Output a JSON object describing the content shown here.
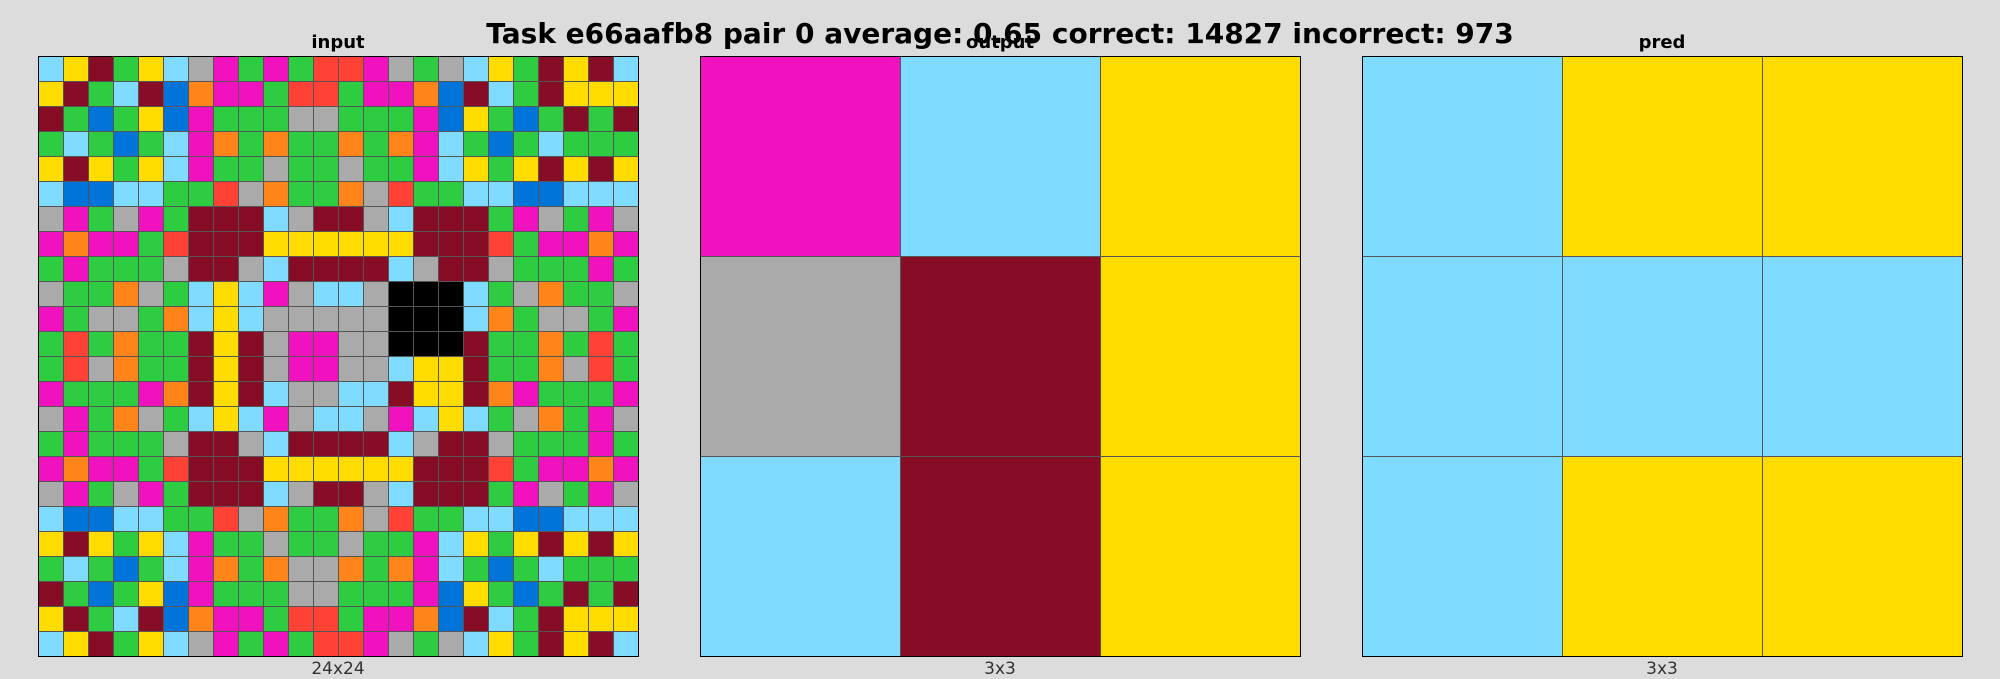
{
  "title": "Task e66aafb8 pair 0 average: 0.65 correct: 14827 incorrect: 973",
  "palette": {
    "0": "#000000",
    "1": "#0074D9",
    "2": "#FF4136",
    "3": "#2ECC40",
    "4": "#FFDC00",
    "5": "#AAAAAA",
    "6": "#F012BE",
    "7": "#FF851B",
    "8": "#7FDBFF",
    "9": "#870C25"
  },
  "panels": [
    {
      "title": "input",
      "caption": "24x24",
      "grid": [
        [
          8,
          4,
          9,
          3,
          4,
          8,
          5,
          6,
          3,
          6,
          3,
          2,
          2,
          6,
          5,
          3,
          5,
          8,
          4,
          3,
          9,
          4,
          9,
          8
        ],
        [
          4,
          9,
          3,
          8,
          9,
          1,
          7,
          6,
          6,
          3,
          2,
          2,
          3,
          6,
          6,
          7,
          1,
          9,
          8,
          3,
          9,
          4,
          4,
          4
        ],
        [
          9,
          3,
          1,
          3,
          4,
          1,
          6,
          3,
          3,
          3,
          5,
          5,
          3,
          3,
          3,
          6,
          1,
          4,
          3,
          1,
          3,
          9,
          3,
          9
        ],
        [
          3,
          8,
          3,
          1,
          3,
          8,
          6,
          7,
          3,
          7,
          3,
          3,
          7,
          3,
          7,
          6,
          8,
          3,
          1,
          3,
          8,
          3,
          3,
          3
        ],
        [
          4,
          9,
          4,
          3,
          4,
          8,
          6,
          3,
          3,
          5,
          3,
          3,
          5,
          3,
          3,
          6,
          8,
          4,
          3,
          4,
          9,
          4,
          9,
          4
        ],
        [
          8,
          1,
          1,
          8,
          8,
          3,
          3,
          2,
          5,
          7,
          3,
          3,
          7,
          5,
          2,
          3,
          3,
          8,
          8,
          1,
          1,
          8,
          8,
          8
        ],
        [
          5,
          6,
          3,
          5,
          6,
          3,
          9,
          9,
          9,
          8,
          5,
          9,
          9,
          5,
          8,
          9,
          9,
          9,
          3,
          6,
          5,
          3,
          6,
          5
        ],
        [
          6,
          7,
          6,
          6,
          3,
          2,
          9,
          9,
          9,
          4,
          4,
          4,
          4,
          4,
          4,
          9,
          9,
          9,
          2,
          3,
          6,
          6,
          7,
          6
        ],
        [
          3,
          6,
          3,
          3,
          3,
          5,
          9,
          9,
          5,
          8,
          9,
          9,
          9,
          9,
          8,
          5,
          9,
          9,
          5,
          3,
          3,
          3,
          6,
          3
        ],
        [
          5,
          3,
          3,
          7,
          5,
          3,
          8,
          4,
          8,
          6,
          5,
          8,
          8,
          5,
          0,
          0,
          0,
          8,
          3,
          5,
          7,
          3,
          3,
          5
        ],
        [
          6,
          3,
          5,
          5,
          3,
          7,
          8,
          4,
          8,
          5,
          5,
          5,
          5,
          5,
          0,
          0,
          0,
          8,
          7,
          3,
          5,
          5,
          3,
          6
        ],
        [
          3,
          2,
          3,
          7,
          3,
          3,
          9,
          4,
          9,
          5,
          6,
          6,
          5,
          5,
          0,
          0,
          0,
          9,
          3,
          3,
          7,
          3,
          2,
          3
        ],
        [
          3,
          2,
          5,
          7,
          3,
          3,
          9,
          4,
          9,
          5,
          6,
          6,
          5,
          5,
          8,
          4,
          4,
          9,
          3,
          3,
          7,
          5,
          2,
          3
        ],
        [
          6,
          3,
          3,
          3,
          6,
          7,
          9,
          4,
          9,
          8,
          5,
          5,
          8,
          8,
          9,
          4,
          4,
          9,
          7,
          6,
          3,
          3,
          3,
          6
        ],
        [
          5,
          6,
          3,
          7,
          5,
          3,
          8,
          4,
          8,
          6,
          5,
          8,
          8,
          5,
          6,
          8,
          4,
          8,
          3,
          5,
          7,
          3,
          6,
          5
        ],
        [
          3,
          6,
          3,
          3,
          3,
          5,
          9,
          9,
          5,
          8,
          9,
          9,
          9,
          9,
          8,
          5,
          9,
          9,
          5,
          3,
          3,
          3,
          6,
          3
        ],
        [
          6,
          7,
          6,
          6,
          3,
          2,
          9,
          9,
          9,
          4,
          4,
          4,
          4,
          4,
          4,
          9,
          9,
          9,
          2,
          3,
          6,
          6,
          7,
          6
        ],
        [
          5,
          6,
          3,
          5,
          6,
          3,
          9,
          9,
          9,
          8,
          5,
          9,
          9,
          5,
          8,
          9,
          9,
          9,
          3,
          6,
          5,
          3,
          6,
          5
        ],
        [
          8,
          1,
          1,
          8,
          8,
          3,
          3,
          2,
          5,
          7,
          3,
          3,
          7,
          5,
          2,
          3,
          3,
          8,
          8,
          1,
          1,
          8,
          8,
          8
        ],
        [
          4,
          9,
          4,
          3,
          4,
          8,
          6,
          3,
          3,
          5,
          3,
          3,
          5,
          3,
          3,
          6,
          8,
          4,
          3,
          4,
          9,
          4,
          9,
          4
        ],
        [
          3,
          8,
          3,
          1,
          3,
          8,
          6,
          7,
          3,
          7,
          5,
          5,
          7,
          3,
          7,
          6,
          8,
          3,
          1,
          3,
          8,
          3,
          3,
          3
        ],
        [
          9,
          3,
          1,
          3,
          4,
          1,
          6,
          3,
          3,
          3,
          5,
          5,
          3,
          3,
          3,
          6,
          1,
          4,
          3,
          1,
          3,
          9,
          3,
          9
        ],
        [
          4,
          9,
          3,
          8,
          9,
          1,
          7,
          6,
          6,
          3,
          2,
          2,
          3,
          6,
          6,
          7,
          1,
          9,
          8,
          3,
          9,
          4,
          4,
          4
        ],
        [
          8,
          4,
          9,
          3,
          4,
          8,
          5,
          6,
          3,
          6,
          3,
          2,
          2,
          6,
          5,
          3,
          5,
          8,
          4,
          3,
          9,
          4,
          9,
          8
        ]
      ]
    },
    {
      "title": "output",
      "caption": "3x3",
      "grid": [
        [
          6,
          8,
          4
        ],
        [
          5,
          9,
          4
        ],
        [
          8,
          9,
          4
        ]
      ]
    },
    {
      "title": "pred",
      "caption": "3x3",
      "grid": [
        [
          8,
          4,
          4
        ],
        [
          8,
          8,
          8
        ],
        [
          8,
          4,
          4
        ]
      ]
    }
  ]
}
